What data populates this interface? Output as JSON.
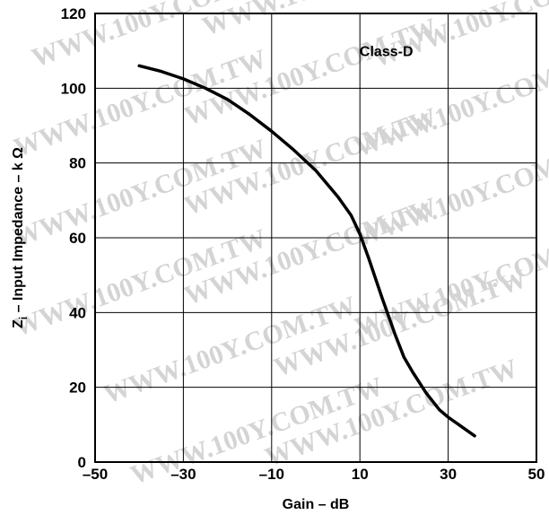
{
  "chart_data": {
    "type": "line",
    "title": "",
    "xlabel": "Gain – dB",
    "ylabel_prefix": "Z",
    "ylabel_subscript": "i",
    "ylabel_rest": " – Input Impedance – k Ω",
    "xlim": [
      -50,
      50
    ],
    "ylim": [
      0,
      120
    ],
    "x_ticks": [
      -50,
      -30,
      -10,
      10,
      30,
      50
    ],
    "x_tick_labels": [
      "–50",
      "–30",
      "–10",
      "10",
      "30",
      "50"
    ],
    "y_ticks": [
      0,
      20,
      40,
      60,
      80,
      100,
      120
    ],
    "y_tick_labels": [
      "0",
      "20",
      "40",
      "60",
      "80",
      "100",
      "120"
    ],
    "grid": true,
    "annotations": [
      {
        "text": "Class-D",
        "x": 16,
        "y": 110
      }
    ],
    "series": [
      {
        "x": [
          -40,
          -35,
          -30,
          -25,
          -20,
          -15,
          -10,
          -5,
          0,
          5,
          8,
          10,
          12,
          15,
          18,
          20,
          22,
          25,
          28,
          30,
          33,
          36
        ],
        "y": [
          106,
          104.5,
          102.5,
          100,
          97,
          93,
          88.5,
          83.5,
          78,
          71,
          66,
          61,
          54.5,
          44,
          34,
          28,
          24,
          18.5,
          14,
          12,
          9.5,
          7
        ]
      }
    ]
  },
  "watermark": "WWW.100Y.COM.TW"
}
